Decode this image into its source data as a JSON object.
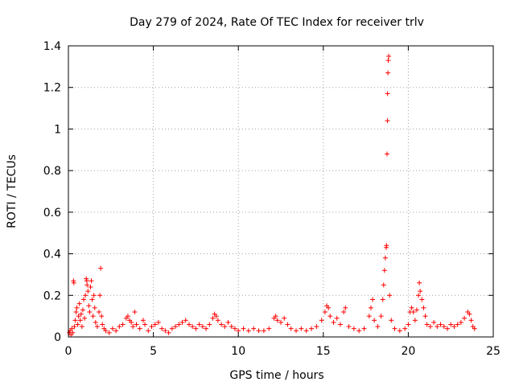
{
  "chart_data": {
    "type": "scatter",
    "title": "Day 279 of 2024, Rate Of TEC Index for receiver trlv",
    "xlabel": "GPS time / hours",
    "ylabel": "ROTI / TECUs",
    "xlim": [
      0,
      25
    ],
    "ylim": [
      0,
      1.4
    ],
    "xticks": [
      0,
      5,
      10,
      15,
      20,
      25
    ],
    "xtick_labels": [
      "0",
      "5",
      "10",
      "15",
      "20",
      "25"
    ],
    "yticks": [
      0,
      0.2,
      0.4,
      0.6,
      0.8,
      1.0,
      1.2,
      1.4
    ],
    "ytick_labels": [
      "0",
      "0.2",
      "0.4",
      "0.6",
      "0.8",
      "1",
      "1.2",
      "1.4"
    ],
    "grid": true,
    "marker": "plus",
    "marker_color": "#ff0000",
    "series": [
      {
        "name": "ROTI",
        "points": [
          [
            0.05,
            0.02
          ],
          [
            0.1,
            0.03
          ],
          [
            0.15,
            0.01
          ],
          [
            0.2,
            0.04
          ],
          [
            0.25,
            0.02
          ],
          [
            0.3,
            0.27
          ],
          [
            0.32,
            0.26
          ],
          [
            0.35,
            0.05
          ],
          [
            0.4,
            0.08
          ],
          [
            0.45,
            0.12
          ],
          [
            0.5,
            0.14
          ],
          [
            0.55,
            0.06
          ],
          [
            0.6,
            0.1
          ],
          [
            0.65,
            0.16
          ],
          [
            0.7,
            0.08
          ],
          [
            0.75,
            0.11
          ],
          [
            0.8,
            0.05
          ],
          [
            0.85,
            0.13
          ],
          [
            0.9,
            0.18
          ],
          [
            0.95,
            0.09
          ],
          [
            1.0,
            0.2
          ],
          [
            1.05,
            0.28
          ],
          [
            1.08,
            0.27
          ],
          [
            1.1,
            0.25
          ],
          [
            1.15,
            0.22
          ],
          [
            1.2,
            0.15
          ],
          [
            1.25,
            0.12
          ],
          [
            1.3,
            0.24
          ],
          [
            1.35,
            0.27
          ],
          [
            1.4,
            0.18
          ],
          [
            1.45,
            0.1
          ],
          [
            1.5,
            0.2
          ],
          [
            1.55,
            0.14
          ],
          [
            1.6,
            0.07
          ],
          [
            1.7,
            0.05
          ],
          [
            1.8,
            0.12
          ],
          [
            1.85,
            0.2
          ],
          [
            1.9,
            0.33
          ],
          [
            1.95,
            0.1
          ],
          [
            2.0,
            0.06
          ],
          [
            2.1,
            0.04
          ],
          [
            2.2,
            0.03
          ],
          [
            2.4,
            0.02
          ],
          [
            2.6,
            0.04
          ],
          [
            2.8,
            0.03
          ],
          [
            3.0,
            0.05
          ],
          [
            3.2,
            0.06
          ],
          [
            3.4,
            0.09
          ],
          [
            3.5,
            0.1
          ],
          [
            3.6,
            0.08
          ],
          [
            3.7,
            0.07
          ],
          [
            3.8,
            0.05
          ],
          [
            3.9,
            0.12
          ],
          [
            4.0,
            0.06
          ],
          [
            4.2,
            0.04
          ],
          [
            4.4,
            0.08
          ],
          [
            4.5,
            0.06
          ],
          [
            4.7,
            0.03
          ],
          [
            4.9,
            0.05
          ],
          [
            5.1,
            0.06
          ],
          [
            5.3,
            0.07
          ],
          [
            5.5,
            0.04
          ],
          [
            5.7,
            0.03
          ],
          [
            5.9,
            0.02
          ],
          [
            6.1,
            0.04
          ],
          [
            6.3,
            0.05
          ],
          [
            6.5,
            0.06
          ],
          [
            6.7,
            0.07
          ],
          [
            6.9,
            0.08
          ],
          [
            7.1,
            0.06
          ],
          [
            7.3,
            0.05
          ],
          [
            7.5,
            0.04
          ],
          [
            7.7,
            0.06
          ],
          [
            7.9,
            0.05
          ],
          [
            8.1,
            0.04
          ],
          [
            8.3,
            0.06
          ],
          [
            8.5,
            0.09
          ],
          [
            8.6,
            0.11
          ],
          [
            8.7,
            0.1
          ],
          [
            8.8,
            0.08
          ],
          [
            9.0,
            0.06
          ],
          [
            9.2,
            0.05
          ],
          [
            9.4,
            0.07
          ],
          [
            9.6,
            0.05
          ],
          [
            9.8,
            0.04
          ],
          [
            10.0,
            0.03
          ],
          [
            10.3,
            0.04
          ],
          [
            10.6,
            0.03
          ],
          [
            10.9,
            0.04
          ],
          [
            11.2,
            0.03
          ],
          [
            11.5,
            0.03
          ],
          [
            11.8,
            0.04
          ],
          [
            12.1,
            0.09
          ],
          [
            12.2,
            0.1
          ],
          [
            12.3,
            0.08
          ],
          [
            12.5,
            0.07
          ],
          [
            12.7,
            0.09
          ],
          [
            12.9,
            0.06
          ],
          [
            13.1,
            0.04
          ],
          [
            13.4,
            0.03
          ],
          [
            13.7,
            0.04
          ],
          [
            14.0,
            0.03
          ],
          [
            14.3,
            0.04
          ],
          [
            14.6,
            0.05
          ],
          [
            14.9,
            0.08
          ],
          [
            15.1,
            0.12
          ],
          [
            15.2,
            0.15
          ],
          [
            15.3,
            0.14
          ],
          [
            15.4,
            0.1
          ],
          [
            15.6,
            0.07
          ],
          [
            15.8,
            0.09
          ],
          [
            16.0,
            0.06
          ],
          [
            16.2,
            0.12
          ],
          [
            16.3,
            0.14
          ],
          [
            16.5,
            0.05
          ],
          [
            16.8,
            0.04
          ],
          [
            17.1,
            0.03
          ],
          [
            17.4,
            0.04
          ],
          [
            17.7,
            0.1
          ],
          [
            17.8,
            0.14
          ],
          [
            17.9,
            0.18
          ],
          [
            18.0,
            0.08
          ],
          [
            18.2,
            0.05
          ],
          [
            18.4,
            0.1
          ],
          [
            18.5,
            0.18
          ],
          [
            18.55,
            0.25
          ],
          [
            18.6,
            0.32
          ],
          [
            18.65,
            0.38
          ],
          [
            18.7,
            0.43
          ],
          [
            18.72,
            0.44
          ],
          [
            18.75,
            0.88
          ],
          [
            18.77,
            1.04
          ],
          [
            18.78,
            1.17
          ],
          [
            18.8,
            1.27
          ],
          [
            18.82,
            1.33
          ],
          [
            18.85,
            1.35
          ],
          [
            18.9,
            0.2
          ],
          [
            19.0,
            0.08
          ],
          [
            19.2,
            0.04
          ],
          [
            19.5,
            0.03
          ],
          [
            19.8,
            0.04
          ],
          [
            20.0,
            0.06
          ],
          [
            20.1,
            0.12
          ],
          [
            20.2,
            0.14
          ],
          [
            20.3,
            0.12
          ],
          [
            20.4,
            0.08
          ],
          [
            20.5,
            0.13
          ],
          [
            20.6,
            0.2
          ],
          [
            20.65,
            0.26
          ],
          [
            20.7,
            0.22
          ],
          [
            20.8,
            0.18
          ],
          [
            20.9,
            0.14
          ],
          [
            21.0,
            0.1
          ],
          [
            21.1,
            0.06
          ],
          [
            21.3,
            0.05
          ],
          [
            21.5,
            0.07
          ],
          [
            21.7,
            0.05
          ],
          [
            21.9,
            0.06
          ],
          [
            22.1,
            0.05
          ],
          [
            22.3,
            0.04
          ],
          [
            22.5,
            0.06
          ],
          [
            22.7,
            0.05
          ],
          [
            22.9,
            0.06
          ],
          [
            23.1,
            0.07
          ],
          [
            23.3,
            0.09
          ],
          [
            23.5,
            0.12
          ],
          [
            23.6,
            0.11
          ],
          [
            23.7,
            0.08
          ],
          [
            23.8,
            0.05
          ],
          [
            23.9,
            0.04
          ]
        ]
      }
    ]
  }
}
